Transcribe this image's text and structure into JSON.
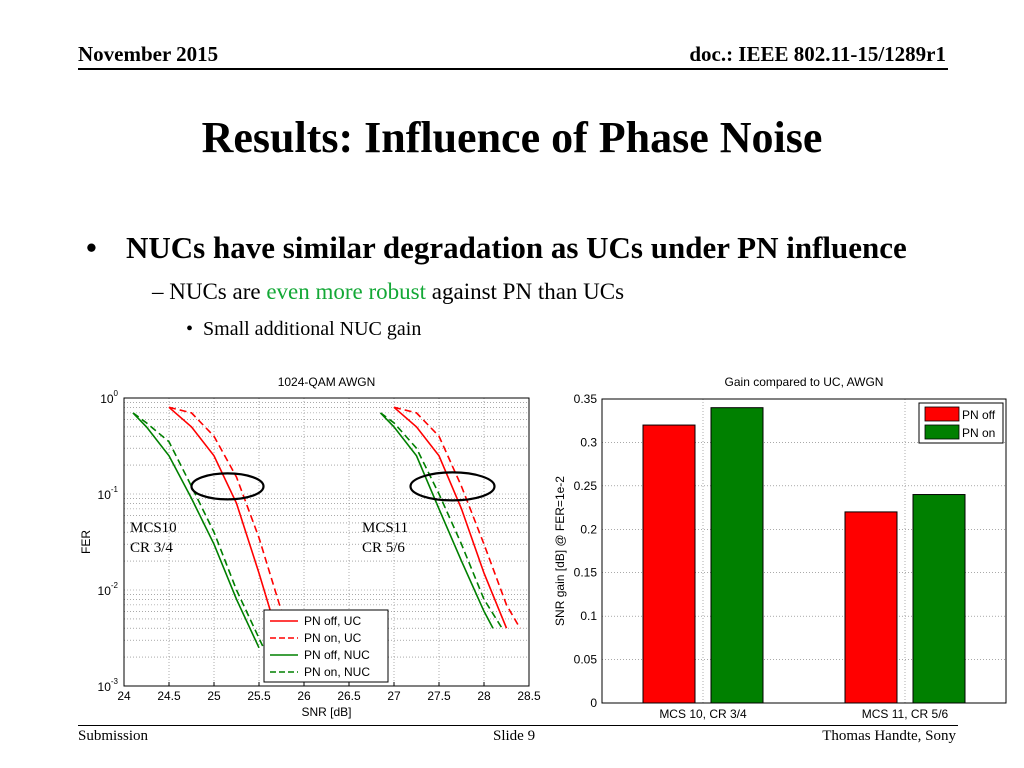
{
  "header": {
    "date": "November 2015",
    "doc": "doc.: IEEE 802.11-15/1289r1"
  },
  "title": "Results: Influence of Phase Noise",
  "bullets": {
    "level1": "NUCs have similar degradation as UCs under PN influence",
    "level2_prefix": "NUCs are ",
    "level2_highlight": "even more robust",
    "level2_suffix": " against PN than UCs",
    "level3": "Small additional NUC gain"
  },
  "footer": {
    "left": "Submission",
    "center": "Slide 9",
    "right": "Thomas Handte, Sony"
  },
  "colors": {
    "red": "#ff0000",
    "green": "#008000",
    "highlight_green": "#13a836"
  },
  "chart_data": [
    {
      "type": "line",
      "title": "1024-QAM AWGN",
      "xlabel": "SNR [dB]",
      "ylabel": "FER",
      "xlim": [
        24,
        28.5
      ],
      "ylim": [
        0.001,
        1
      ],
      "yscale": "log",
      "grid": true,
      "x_ticks": [
        "24",
        "24.5",
        "25",
        "25.5",
        "26",
        "26.5",
        "27",
        "27.5",
        "28",
        "28.5"
      ],
      "y_ticks": [
        {
          "base": "10",
          "exp": "0",
          "value": 1
        },
        {
          "base": "10",
          "exp": "-1",
          "value": 0.1
        },
        {
          "base": "10",
          "exp": "-2",
          "value": 0.01
        },
        {
          "base": "10",
          "exp": "-3",
          "value": 0.001
        }
      ],
      "legend_position": "bottom-right",
      "legend": [
        {
          "label": "PN off, UC",
          "color": "#ff0000",
          "dash": false
        },
        {
          "label": "PN on, UC",
          "color": "#ff0000",
          "dash": true
        },
        {
          "label": "PN off, NUC",
          "color": "#008000",
          "dash": false
        },
        {
          "label": "PN on, NUC",
          "color": "#008000",
          "dash": true
        }
      ],
      "annotations": [
        {
          "line1": "MCS10",
          "line2": "CR 3/4"
        },
        {
          "line1": "MCS11",
          "line2": "CR 5/6"
        }
      ],
      "series": [
        {
          "name": "PN off, UC",
          "group": "MCS10",
          "color": "#ff0000",
          "dash": false,
          "x": [
            24.5,
            24.75,
            25.0,
            25.25,
            25.5,
            25.75
          ],
          "y": [
            0.8,
            0.5,
            0.25,
            0.08,
            0.015,
            0.0025
          ]
        },
        {
          "name": "PN on, UC",
          "group": "MCS10",
          "color": "#ff0000",
          "dash": true,
          "x": [
            24.5,
            24.75,
            25.0,
            25.25,
            25.5,
            25.75,
            25.85
          ],
          "y": [
            0.8,
            0.7,
            0.4,
            0.15,
            0.035,
            0.006,
            0.003
          ]
        },
        {
          "name": "PN off, NUC",
          "group": "MCS10",
          "color": "#008000",
          "dash": false,
          "x": [
            24.1,
            24.25,
            24.5,
            24.75,
            25.0,
            25.25,
            25.5
          ],
          "y": [
            0.7,
            0.5,
            0.25,
            0.09,
            0.03,
            0.008,
            0.0025
          ]
        },
        {
          "name": "PN on, NUC",
          "group": "MCS10",
          "color": "#008000",
          "dash": true,
          "x": [
            24.1,
            24.25,
            24.5,
            24.75,
            25.0,
            25.25,
            25.55
          ],
          "y": [
            0.7,
            0.55,
            0.35,
            0.12,
            0.04,
            0.01,
            0.0025
          ]
        },
        {
          "name": "PN off, UC",
          "group": "MCS11",
          "color": "#ff0000",
          "dash": false,
          "x": [
            27.0,
            27.25,
            27.5,
            27.75,
            28.0,
            28.25
          ],
          "y": [
            0.8,
            0.5,
            0.25,
            0.07,
            0.015,
            0.004
          ]
        },
        {
          "name": "PN on, UC",
          "group": "MCS11",
          "color": "#ff0000",
          "dash": true,
          "x": [
            27.0,
            27.25,
            27.5,
            27.75,
            28.0,
            28.25,
            28.4
          ],
          "y": [
            0.8,
            0.7,
            0.4,
            0.12,
            0.03,
            0.007,
            0.004
          ]
        },
        {
          "name": "PN off, NUC",
          "group": "MCS11",
          "color": "#008000",
          "dash": false,
          "x": [
            26.85,
            27.0,
            27.25,
            27.5,
            27.75,
            28.0,
            28.1
          ],
          "y": [
            0.7,
            0.5,
            0.25,
            0.07,
            0.02,
            0.006,
            0.004
          ]
        },
        {
          "name": "PN on, NUC",
          "group": "MCS11",
          "color": "#008000",
          "dash": true,
          "x": [
            26.85,
            27.0,
            27.25,
            27.5,
            27.75,
            28.0,
            28.2
          ],
          "y": [
            0.7,
            0.55,
            0.3,
            0.1,
            0.03,
            0.008,
            0.004
          ]
        }
      ]
    },
    {
      "type": "bar",
      "title": "Gain compared to UC, AWGN",
      "xlabel": "",
      "ylabel": "SNR gain [dB] @ FER=1e-2",
      "ylim": [
        0,
        0.35
      ],
      "y_ticks": [
        "0",
        "0.05",
        "0.1",
        "0.15",
        "0.2",
        "0.25",
        "0.3",
        "0.35"
      ],
      "grid": true,
      "legend_position": "top-right",
      "categories": [
        "MCS 10, CR 3/4",
        "MCS 11, CR 5/6"
      ],
      "series": [
        {
          "name": "PN off",
          "color": "#ff0000",
          "values": [
            0.32,
            0.22
          ]
        },
        {
          "name": "PN on",
          "color": "#008000",
          "values": [
            0.34,
            0.24
          ]
        }
      ]
    }
  ]
}
